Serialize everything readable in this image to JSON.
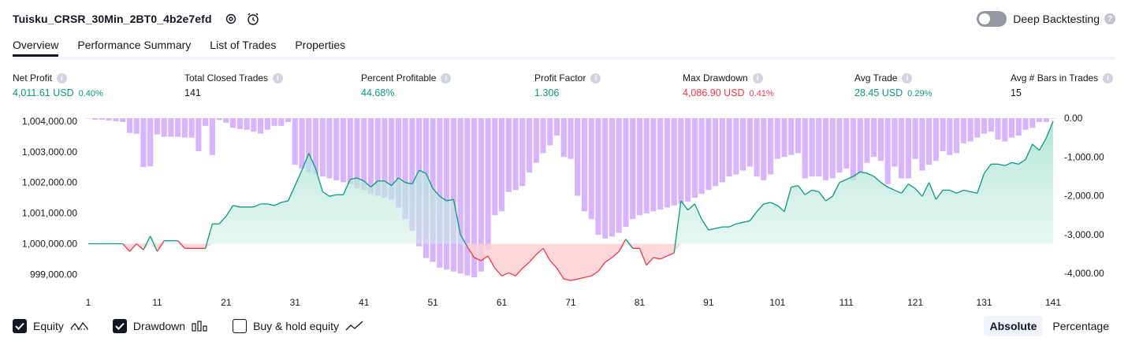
{
  "header": {
    "strategy_name": "Tuisku_CRSR_30Min_2BT0_4b2e7efd",
    "deep_backtesting_label": "Deep Backtesting",
    "deep_backtesting_enabled": false
  },
  "tabs": [
    {
      "label": "Overview",
      "active": true
    },
    {
      "label": "Performance Summary",
      "active": false
    },
    {
      "label": "List of Trades",
      "active": false
    },
    {
      "label": "Properties",
      "active": false
    }
  ],
  "metrics": [
    {
      "label": "Net Profit",
      "value": "4,011.61 USD",
      "pct": "0.40%",
      "color": "green"
    },
    {
      "label": "Total Closed Trades",
      "value": "141",
      "pct": "",
      "color": "black"
    },
    {
      "label": "Percent Profitable",
      "value": "44.68%",
      "pct": "",
      "color": "green"
    },
    {
      "label": "Profit Factor",
      "value": "1.306",
      "pct": "",
      "color": "green"
    },
    {
      "label": "Max Drawdown",
      "value": "4,086.90 USD",
      "pct": "0.41%",
      "color": "red"
    },
    {
      "label": "Avg Trade",
      "value": "28.45 USD",
      "pct": "0.29%",
      "color": "green"
    },
    {
      "label": "Avg # Bars in Trades",
      "value": "15",
      "pct": "",
      "color": "black"
    }
  ],
  "legend": {
    "equity_label": "Equity",
    "equity_checked": true,
    "drawdown_label": "Drawdown",
    "drawdown_checked": true,
    "buyhold_label": "Buy & hold equity",
    "buyhold_checked": false
  },
  "modes": {
    "absolute_label": "Absolute",
    "percentage_label": "Percentage",
    "selected": "Absolute"
  },
  "colors": {
    "equity_up": "#089981",
    "equity_down": "#f23645",
    "drawdown_bar": "#d8b4fe",
    "area_up": "#cdeee4",
    "area_down": "#fbd0d6"
  },
  "chart_data": {
    "type": "area",
    "x": [
      1,
      2,
      3,
      4,
      5,
      6,
      7,
      8,
      9,
      10,
      11,
      12,
      13,
      14,
      15,
      16,
      17,
      18,
      19,
      20,
      21,
      22,
      23,
      24,
      25,
      26,
      27,
      28,
      29,
      30,
      31,
      32,
      33,
      34,
      35,
      36,
      37,
      38,
      39,
      40,
      41,
      42,
      43,
      44,
      45,
      46,
      47,
      48,
      49,
      50,
      51,
      52,
      53,
      54,
      55,
      56,
      57,
      58,
      59,
      60,
      61,
      62,
      63,
      64,
      65,
      66,
      67,
      68,
      69,
      70,
      71,
      72,
      73,
      74,
      75,
      76,
      77,
      78,
      79,
      80,
      81,
      82,
      83,
      84,
      85,
      86,
      87,
      88,
      89,
      90,
      91,
      92,
      93,
      94,
      95,
      96,
      97,
      98,
      99,
      100,
      101,
      102,
      103,
      104,
      105,
      106,
      107,
      108,
      109,
      110,
      111,
      112,
      113,
      114,
      115,
      116,
      117,
      118,
      119,
      120,
      121,
      122,
      123,
      124,
      125,
      126,
      127,
      128,
      129,
      130,
      131,
      132,
      133,
      134,
      135,
      136,
      137,
      138,
      139,
      140,
      141
    ],
    "x_ticks": [
      "1",
      "11",
      "21",
      "31",
      "41",
      "51",
      "61",
      "71",
      "81",
      "91",
      "101",
      "111",
      "121",
      "131",
      "141"
    ],
    "left_axis": {
      "ticks": [
        "1,004,000.00",
        "1,003,000.00",
        "1,002,000.00",
        "1,001,000.00",
        "1,000,000.00",
        "999,000.00"
      ],
      "ylim": [
        998650,
        1004100
      ]
    },
    "right_axis": {
      "ticks": [
        "0.00",
        "-1,000.00",
        "-2,000.00",
        "-3,000.00",
        "-4,000.00"
      ],
      "ylim": [
        -4300,
        0
      ]
    },
    "baseline": 1000000,
    "series": [
      {
        "name": "Equity",
        "values": [
          1000000,
          1000000,
          1000000,
          1000000,
          1000000,
          1000000,
          999750,
          1000000,
          999800,
          1000250,
          999750,
          1000100,
          1000100,
          1000100,
          999850,
          999850,
          999850,
          999850,
          1000650,
          1000650,
          1000900,
          1001250,
          1001200,
          1001200,
          1001200,
          1001300,
          1001300,
          1001250,
          1001350,
          1001400,
          1001900,
          1002400,
          1002950,
          1002450,
          1001700,
          1001550,
          1001600,
          1001600,
          1002100,
          1002150,
          1002050,
          1001850,
          1002050,
          1002050,
          1001900,
          1002150,
          1002000,
          1001950,
          1002400,
          1002300,
          1001800,
          1001550,
          1001400,
          1001450,
          1000300,
          999900,
          999550,
          999450,
          999600,
          999200,
          998950,
          999050,
          998950,
          999200,
          999400,
          999650,
          999850,
          999450,
          999200,
          998850,
          998800,
          998850,
          998900,
          998950,
          999100,
          999400,
          999550,
          999750,
          1000150,
          999850,
          999850,
          999300,
          999550,
          999500,
          999600,
          999700,
          1001400,
          1001100,
          1001300,
          1000800,
          1000450,
          1000500,
          1000550,
          1000550,
          1000650,
          1000700,
          1000750,
          1001050,
          1001300,
          1001350,
          1001250,
          1001050,
          1001850,
          1001900,
          1001600,
          1001750,
          1001700,
          1001400,
          1001550,
          1002000,
          1002100,
          1002200,
          1002350,
          1002300,
          1002200,
          1002000,
          1001850,
          1001750,
          1001650,
          1001950,
          1001800,
          1001550,
          1002000,
          1001450,
          1001750,
          1001750,
          1001650,
          1001750,
          1001700,
          1001650,
          1002300,
          1002600,
          1002600,
          1002550,
          1002650,
          1002600,
          1002750,
          1003250,
          1003050,
          1003450,
          1004000
        ]
      },
      {
        "name": "Drawdown",
        "values": [
          0,
          -40,
          -40,
          -60,
          -80,
          -100,
          -380,
          -400,
          -1260,
          -1240,
          -420,
          -480,
          -480,
          -480,
          -500,
          -500,
          -850,
          -200,
          -950,
          -50,
          -120,
          -250,
          -280,
          -300,
          -350,
          -400,
          -300,
          -200,
          -200,
          -100,
          -1200,
          -1300,
          -1400,
          -1450,
          -1500,
          -1550,
          -1600,
          -1650,
          -1700,
          -1800,
          -1850,
          -1950,
          -2000,
          -2050,
          -2100,
          -2300,
          -2600,
          -2900,
          -3300,
          -3600,
          -3700,
          -3850,
          -3900,
          -3950,
          -4000,
          -4050,
          -4100,
          -3950,
          -3400,
          -2500,
          -2400,
          -1900,
          -1850,
          -1750,
          -1400,
          -1150,
          -900,
          -700,
          -450,
          -1000,
          -1050,
          -2000,
          -2400,
          -2600,
          -3000,
          -3100,
          -3050,
          -2950,
          -2800,
          -2600,
          -2500,
          -2450,
          -2400,
          -2350,
          -2300,
          -2250,
          -2200,
          -2150,
          -2050,
          -1950,
          -1850,
          -1750,
          -1650,
          -1500,
          -1450,
          -1350,
          -1250,
          -1500,
          -1600,
          -1450,
          -1050,
          -1000,
          -950,
          -900,
          -1550,
          -1500,
          -1500,
          -1600,
          -1550,
          -1400,
          -1300,
          -1600,
          -1450,
          -1150,
          -1000,
          -1100,
          -1700,
          -1250,
          -1550,
          -1550,
          -1050,
          -1350,
          -1200,
          -1100,
          -850,
          -950,
          -900,
          -650,
          -600,
          -500,
          -400,
          -350,
          -550,
          -600,
          -500,
          -450,
          -300,
          -250,
          -100,
          -100,
          0
        ]
      }
    ]
  }
}
